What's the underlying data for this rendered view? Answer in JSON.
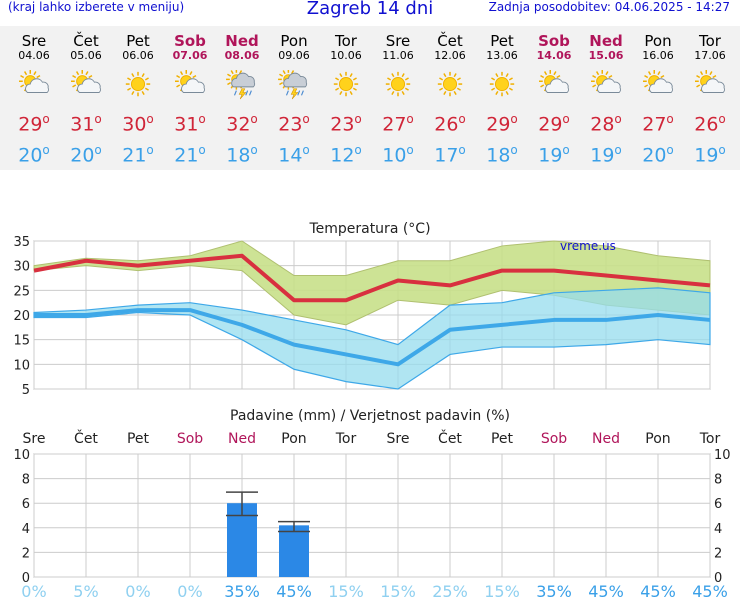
{
  "header": {
    "menu_hint": "(kraj lahko izberete v meniju)",
    "title": "Zagreb 14 dni",
    "updated": "Zadnja posodobitev: 04.06.2025 - 14:27"
  },
  "days": [
    {
      "name": "Sre",
      "date": "04.06",
      "icon": "sun-cloud-icon",
      "max": "29",
      "min": "20",
      "weekend": false
    },
    {
      "name": "Čet",
      "date": "05.06",
      "icon": "sun-cloud-icon",
      "max": "31",
      "min": "20",
      "weekend": false
    },
    {
      "name": "Pet",
      "date": "06.06",
      "icon": "sun-icon",
      "max": "30",
      "min": "21",
      "weekend": false
    },
    {
      "name": "Sob",
      "date": "07.06",
      "icon": "sun-cloud-icon",
      "max": "31",
      "min": "21",
      "weekend": true
    },
    {
      "name": "Ned",
      "date": "08.06",
      "icon": "thunderstorm-icon",
      "max": "32",
      "min": "18",
      "weekend": true
    },
    {
      "name": "Pon",
      "date": "09.06",
      "icon": "thunderstorm-icon",
      "max": "23",
      "min": "14",
      "weekend": false
    },
    {
      "name": "Tor",
      "date": "10.06",
      "icon": "sun-icon",
      "max": "23",
      "min": "12",
      "weekend": false
    },
    {
      "name": "Sre",
      "date": "11.06",
      "icon": "sun-icon",
      "max": "27",
      "min": "10",
      "weekend": false
    },
    {
      "name": "Čet",
      "date": "12.06",
      "icon": "sun-icon",
      "max": "26",
      "min": "17",
      "weekend": false
    },
    {
      "name": "Pet",
      "date": "13.06",
      "icon": "sun-icon",
      "max": "29",
      "min": "18",
      "weekend": false
    },
    {
      "name": "Sob",
      "date": "14.06",
      "icon": "sun-cloud-icon",
      "max": "29",
      "min": "19",
      "weekend": true
    },
    {
      "name": "Ned",
      "date": "15.06",
      "icon": "sun-cloud-icon",
      "max": "28",
      "min": "19",
      "weekend": true
    },
    {
      "name": "Pon",
      "date": "16.06",
      "icon": "sun-cloud-icon",
      "max": "27",
      "min": "20",
      "weekend": false
    },
    {
      "name": "Tor",
      "date": "17.06",
      "icon": "sun-cloud-icon",
      "max": "26",
      "min": "19",
      "weekend": false
    }
  ],
  "colors": {
    "max_line": "#d8303f",
    "max_band": "#c8e08a",
    "min_line": "#3ea8e8",
    "min_band": "#96dcee",
    "overlap_band": "#86c878",
    "precip_bar": "#2b88e6",
    "weekend": "#b0155a",
    "grid": "#cccccc"
  },
  "watermark": "vreme.us",
  "chart_data": [
    {
      "type": "area",
      "title": "Temperatura (°C)",
      "ylim": [
        5,
        35
      ],
      "yticks": [
        "5",
        "10",
        "15",
        "20",
        "25",
        "30",
        "35"
      ],
      "categories": [
        "Sre",
        "Čet",
        "Pet",
        "Sob",
        "Ned",
        "Pon",
        "Tor",
        "Sre",
        "Čet",
        "Pet",
        "Sob",
        "Ned",
        "Pon",
        "Tor"
      ],
      "series": [
        {
          "values": [
            29,
            31,
            30,
            31,
            32,
            23,
            23,
            27,
            26,
            29,
            29,
            28,
            27,
            26
          ],
          "band_high": [
            30,
            31.5,
            31,
            32,
            35,
            28,
            28,
            31,
            31,
            34,
            35,
            34,
            32,
            31
          ],
          "band_low": [
            29,
            30,
            29,
            30,
            29,
            20,
            18,
            23,
            22,
            25,
            24,
            22,
            21,
            20
          ]
        },
        {
          "values": [
            20,
            20,
            21,
            21,
            18,
            14,
            12,
            10,
            17,
            18,
            19,
            19,
            20,
            19
          ],
          "band_high": [
            20.5,
            21,
            22,
            22.5,
            21,
            19,
            17,
            14,
            22,
            22.5,
            24.5,
            25,
            25.5,
            24.5
          ],
          "band_low": [
            19.5,
            19.5,
            20.5,
            20,
            15,
            9,
            6.5,
            5,
            12,
            13.5,
            13.5,
            14,
            15,
            14
          ]
        }
      ],
      "grid": true
    },
    {
      "type": "bar",
      "title": "Padavine (mm) / Verjetnost padavin (%)",
      "categories": [
        "Sre",
        "Čet",
        "Pet",
        "Sob",
        "Ned",
        "Pon",
        "Tor",
        "Sre",
        "Čet",
        "Pet",
        "Sob",
        "Ned",
        "Pon",
        "Tor"
      ],
      "values": [
        0,
        0,
        0,
        0,
        6,
        4.2,
        0,
        0,
        0,
        0,
        0,
        0,
        0,
        0
      ],
      "error_high": [
        0,
        0,
        0,
        0,
        6.9,
        4.5,
        0,
        0,
        0,
        0,
        0,
        0,
        0,
        0
      ],
      "error_low": [
        0,
        0,
        0,
        0,
        5,
        3.7,
        0,
        0,
        0,
        0,
        0,
        0,
        0,
        0
      ],
      "probability": [
        "0%",
        "5%",
        "0%",
        "0%",
        "35%",
        "45%",
        "15%",
        "15%",
        "25%",
        "15%",
        "35%",
        "45%",
        "45%",
        "45%"
      ],
      "ylim": [
        0,
        10
      ],
      "yticks": [
        "0",
        "2",
        "4",
        "6",
        "8",
        "10"
      ],
      "grid": true
    }
  ]
}
